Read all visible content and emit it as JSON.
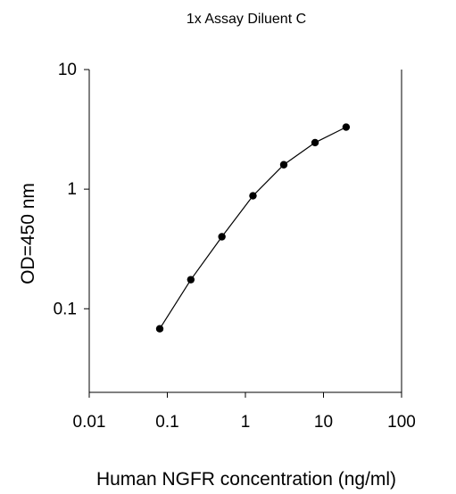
{
  "chart_data": {
    "type": "line",
    "title": "1x Assay Diluent C",
    "xlabel": "Human NGFR concentration (ng/ml)",
    "ylabel": "OD=450 nm",
    "x_scale": "log",
    "y_scale": "log",
    "xlim": [
      0.01,
      100
    ],
    "ylim": [
      0.02,
      10
    ],
    "x_ticks": [
      {
        "value": 0.01,
        "label": "0.01"
      },
      {
        "value": 0.1,
        "label": "0.1"
      },
      {
        "value": 1,
        "label": "1"
      },
      {
        "value": 10,
        "label": "10"
      },
      {
        "value": 100,
        "label": "100"
      }
    ],
    "y_ticks": [
      {
        "value": 0.1,
        "label": "0.1"
      },
      {
        "value": 1,
        "label": "1"
      },
      {
        "value": 10,
        "label": "10"
      }
    ],
    "grid": false,
    "legend": "none",
    "series": [
      {
        "x": [
          0.08,
          0.2,
          0.5,
          1.25,
          3.1,
          7.8,
          19.5
        ],
        "y": [
          0.068,
          0.175,
          0.4,
          0.88,
          1.6,
          2.45,
          3.3
        ],
        "color": "#000000",
        "marker": "circle"
      }
    ]
  }
}
